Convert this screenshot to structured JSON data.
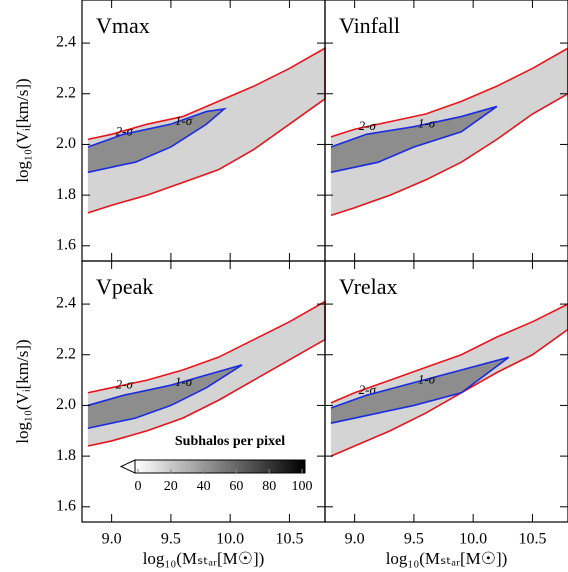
{
  "chart_data": {
    "type": "contour_grid",
    "xlabel": "log₁₀(Mₛₜₐᵣ[M☉])",
    "ylabel": "log₁₀(Vᵢ[km/s])",
    "xlim": [
      8.75,
      10.8
    ],
    "xticks": [
      {
        "value": 9,
        "label": "9.0"
      },
      9.5,
      {
        "value": 10,
        "label": "10.0"
      },
      10.5
    ],
    "ylim": [
      1.54,
      2.57
    ],
    "yticks": [
      1.6,
      1.8,
      {
        "value": 2,
        "label": "2.0"
      },
      2.2,
      2.4
    ],
    "colorbar": {
      "label": "Subhalos per pixel",
      "lim": [
        0,
        100
      ],
      "ticks": [
        0,
        20,
        40,
        60,
        80,
        100
      ]
    },
    "panels": [
      {
        "title": "Vmax",
        "series": [
          {
            "name": "2-σ",
            "color": "#e8141c",
            "x": [
              8.8,
              9.0,
              9.3,
              9.6,
              9.9,
              10.2,
              10.5,
              10.8,
              10.8,
              10.5,
              10.2,
              9.9,
              9.6,
              9.3,
              9.0,
              8.8
            ],
            "y": [
              2.02,
              2.04,
              2.08,
              2.11,
              2.17,
              2.23,
              2.3,
              2.38,
              2.18,
              2.08,
              1.98,
              1.9,
              1.85,
              1.8,
              1.76,
              1.73
            ]
          },
          {
            "name": "1-σ",
            "color": "#1a2be0",
            "x": [
              8.8,
              9.1,
              9.5,
              9.8,
              9.95,
              9.8,
              9.5,
              9.2,
              8.8
            ],
            "y": [
              1.99,
              2.04,
              2.08,
              2.13,
              2.14,
              2.08,
              1.99,
              1.93,
              1.89
            ]
          }
        ]
      },
      {
        "title": "Vinfall",
        "series": [
          {
            "name": "2-σ",
            "color": "#e8141c",
            "x": [
              8.8,
              9.0,
              9.3,
              9.6,
              9.9,
              10.2,
              10.5,
              10.8,
              10.8,
              10.5,
              10.2,
              9.9,
              9.6,
              9.3,
              9.0,
              8.8
            ],
            "y": [
              2.03,
              2.06,
              2.09,
              2.12,
              2.17,
              2.23,
              2.3,
              2.38,
              2.2,
              2.12,
              2.02,
              1.93,
              1.86,
              1.8,
              1.75,
              1.72
            ]
          },
          {
            "name": "1-σ",
            "color": "#1a2be0",
            "x": [
              8.8,
              9.1,
              9.5,
              9.9,
              10.2,
              9.9,
              9.5,
              9.2,
              8.8
            ],
            "y": [
              1.99,
              2.04,
              2.07,
              2.11,
              2.15,
              2.05,
              1.99,
              1.93,
              1.89
            ]
          }
        ]
      },
      {
        "title": "Vpeak",
        "series": [
          {
            "name": "2-σ",
            "color": "#e8141c",
            "x": [
              8.8,
              9.0,
              9.3,
              9.6,
              9.9,
              10.2,
              10.5,
              10.8,
              10.8,
              10.5,
              10.2,
              9.9,
              9.6,
              9.3,
              9.0,
              8.8
            ],
            "y": [
              2.05,
              2.07,
              2.1,
              2.14,
              2.19,
              2.26,
              2.33,
              2.41,
              2.26,
              2.18,
              2.1,
              2.02,
              1.95,
              1.9,
              1.86,
              1.84
            ]
          },
          {
            "name": "1-σ",
            "color": "#1a2be0",
            "x": [
              8.8,
              9.1,
              9.5,
              9.8,
              10.1,
              9.8,
              9.5,
              9.2,
              8.8
            ],
            "y": [
              2.0,
              2.04,
              2.08,
              2.12,
              2.16,
              2.07,
              2.0,
              1.95,
              1.91
            ]
          }
        ]
      },
      {
        "title": "Vrelax",
        "series": [
          {
            "name": "2-σ",
            "color": "#e8141c",
            "x": [
              8.8,
              9.0,
              9.3,
              9.6,
              9.9,
              10.2,
              10.5,
              10.8,
              10.8,
              10.5,
              10.2,
              9.9,
              9.6,
              9.3,
              9.0,
              8.8
            ],
            "y": [
              2.01,
              2.05,
              2.1,
              2.15,
              2.2,
              2.27,
              2.33,
              2.4,
              2.3,
              2.2,
              2.13,
              2.05,
              1.97,
              1.9,
              1.84,
              1.8
            ]
          },
          {
            "name": "1-σ",
            "color": "#1a2be0",
            "x": [
              8.8,
              9.1,
              9.5,
              9.9,
              10.3,
              9.9,
              9.5,
              9.1,
              8.8
            ],
            "y": [
              1.99,
              2.04,
              2.09,
              2.14,
              2.19,
              2.05,
              2.0,
              1.96,
              1.93
            ]
          }
        ]
      }
    ]
  }
}
